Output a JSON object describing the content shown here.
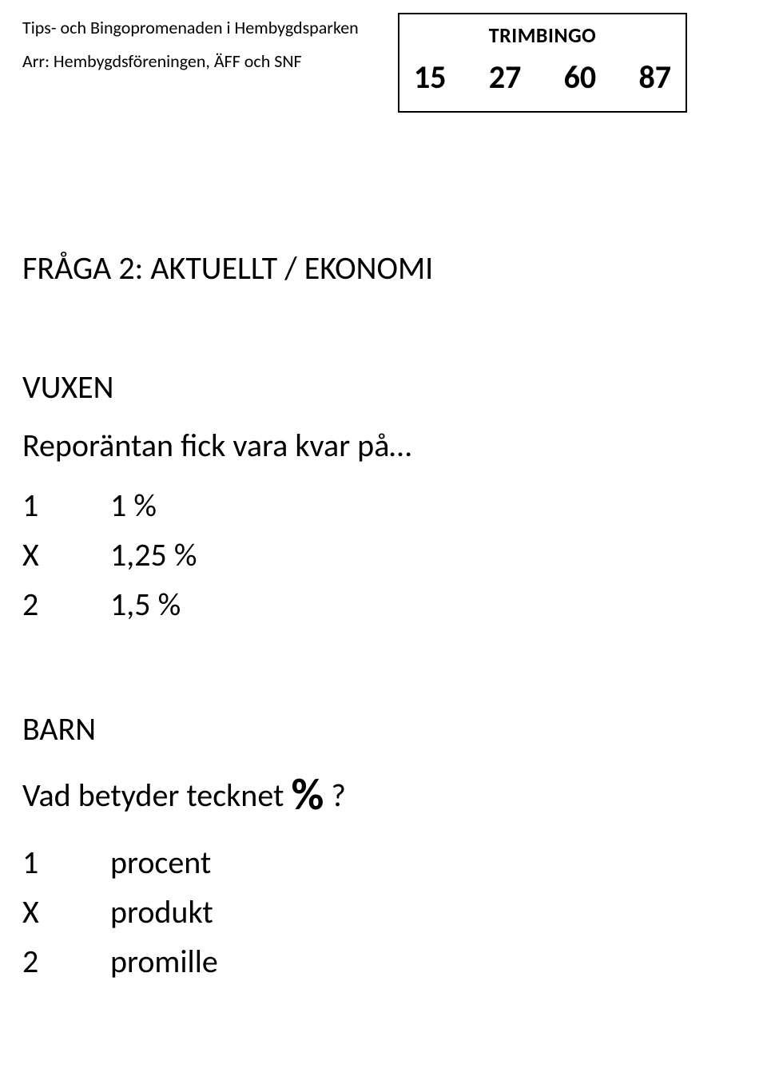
{
  "header": {
    "title": "Tips- och Bingopromenaden i Hembygdsparken",
    "subtitle": "Arr: Hembygdsföreningen, ÄFF och SNF"
  },
  "bingo": {
    "label": "TRIMBINGO",
    "numbers": [
      "15",
      "27",
      "60",
      "87"
    ]
  },
  "question": {
    "title": "FRÅGA 2:  AKTUELLT / EKONOMI"
  },
  "adult": {
    "label": "VUXEN",
    "prompt": "Reporäntan fick vara kvar på…",
    "options": [
      {
        "key": "1",
        "value": "1 %"
      },
      {
        "key": "X",
        "value": "1,25 %"
      },
      {
        "key": "2",
        "value": "1,5 %"
      }
    ]
  },
  "child": {
    "label": "BARN",
    "prompt_prefix": "Vad betyder tecknet ",
    "prompt_symbol": "%",
    "prompt_suffix": " ?",
    "options": [
      {
        "key": "1",
        "value": "procent"
      },
      {
        "key": "X",
        "value": "produkt"
      },
      {
        "key": "2",
        "value": "promille"
      }
    ]
  },
  "style": {
    "text_color": "#000000",
    "background": "#ffffff",
    "body_fontsize": 40,
    "header_fontsize": 22,
    "bingo_label_fontsize": 26,
    "bingo_number_fontsize": 40,
    "symbol_fontsize": 56
  }
}
